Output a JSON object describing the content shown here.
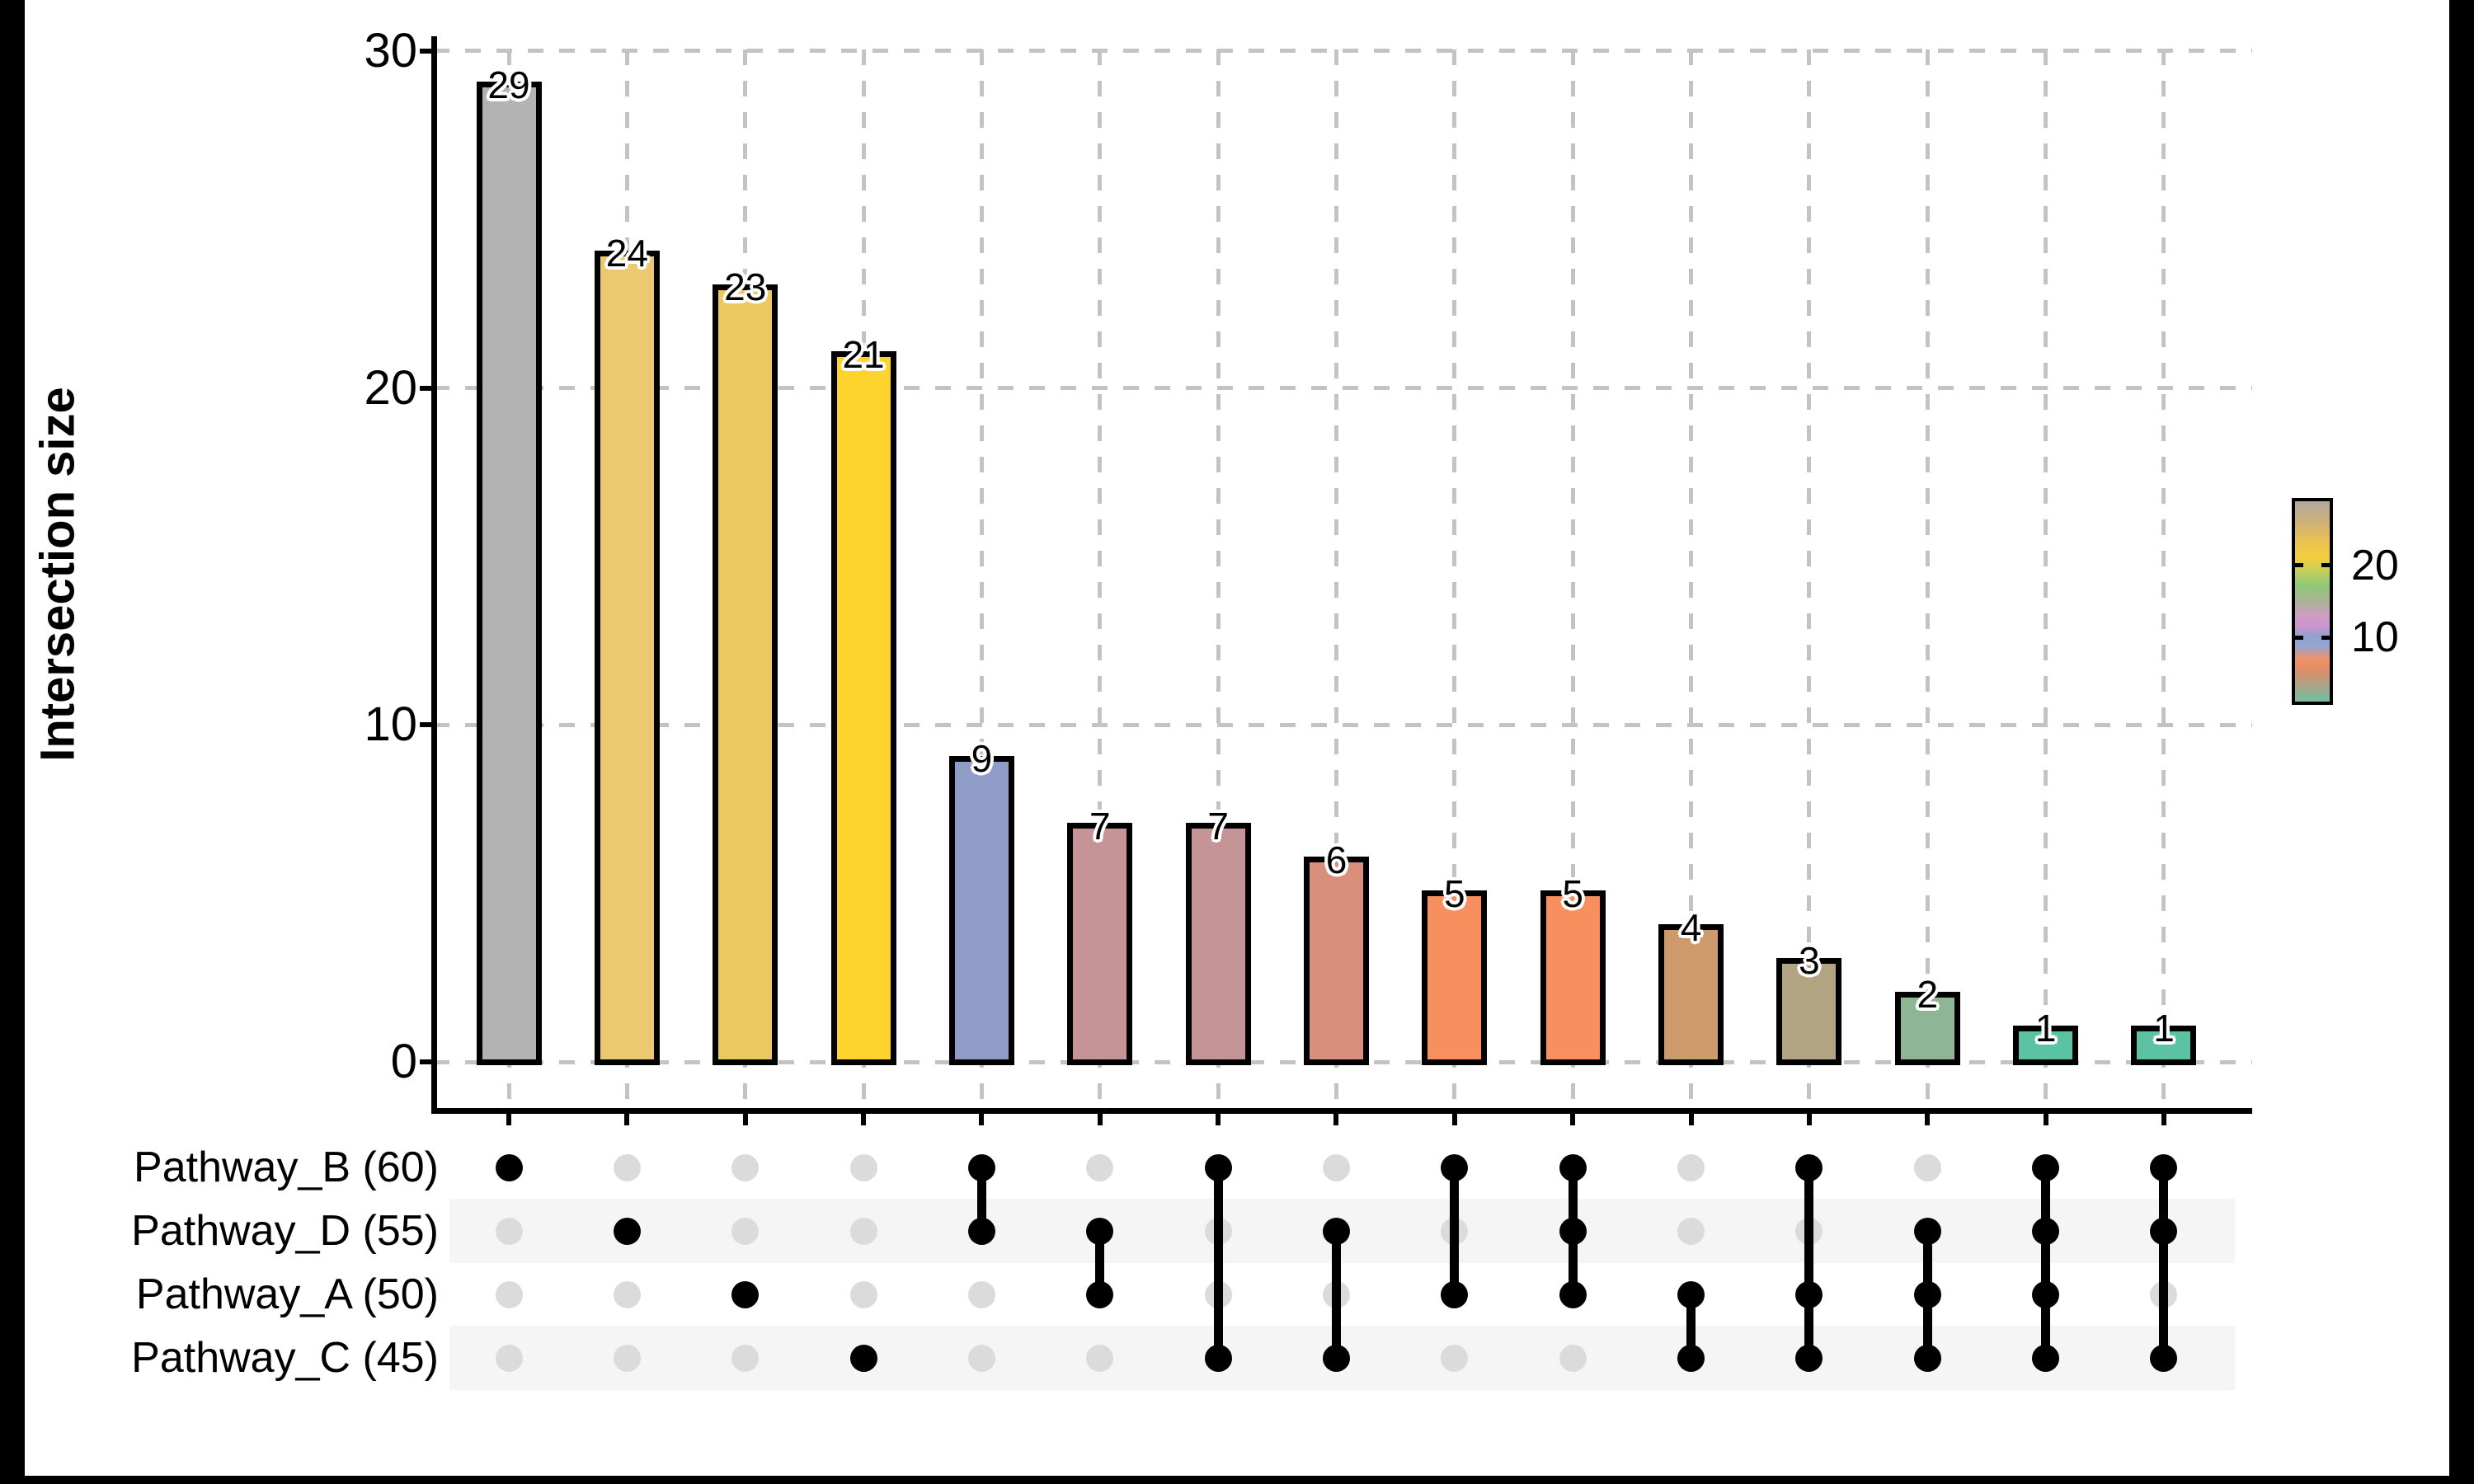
{
  "figure": {
    "background": "#ffffff",
    "border_strips_color": "#000000",
    "axis_color": "#000000",
    "gridline_color": "#c3c3c3",
    "inactive_dot_color": "#dbdbdb",
    "active_dot_color": "#000000",
    "stripe_color": "#f5f5f5"
  },
  "chart_data": {
    "type": "bar",
    "subtype": "upset-plot",
    "title": "",
    "ylabel": "Intersection size",
    "xlabel": "",
    "ylim": [
      0,
      30
    ],
    "y_ticks": [
      0,
      10,
      20,
      30
    ],
    "y_tick_labels": [
      "0",
      "10",
      "20",
      "30"
    ],
    "grid": "dashed",
    "sets": [
      {
        "name": "Pathway_B",
        "size": 60,
        "label": "Pathway_B (60)"
      },
      {
        "name": "Pathway_D",
        "size": 55,
        "label": "Pathway_D (55)"
      },
      {
        "name": "Pathway_A",
        "size": 50,
        "label": "Pathway_A (50)"
      },
      {
        "name": "Pathway_C",
        "size": 45,
        "label": "Pathway_C (45)"
      }
    ],
    "categories": [
      "B",
      "D",
      "A",
      "C",
      "B&D",
      "D&A",
      "B&C",
      "D&C",
      "B&A",
      "B&D&A",
      "A&C",
      "B&A&C",
      "D&A&C",
      "B&D&A&C",
      "B&D&C"
    ],
    "values": [
      29,
      24,
      23,
      21,
      9,
      7,
      7,
      6,
      5,
      5,
      4,
      3,
      2,
      1,
      1
    ],
    "intersections": [
      {
        "value": 29,
        "members": [
          "Pathway_B"
        ],
        "color": "#b3b3b3"
      },
      {
        "value": 24,
        "members": [
          "Pathway_D"
        ],
        "color": "#ecc871"
      },
      {
        "value": 23,
        "members": [
          "Pathway_A"
        ],
        "color": "#edc75f"
      },
      {
        "value": 21,
        "members": [
          "Pathway_C"
        ],
        "color": "#fdd32e"
      },
      {
        "value": 9,
        "members": [
          "Pathway_B",
          "Pathway_D"
        ],
        "color": "#8f9cc7"
      },
      {
        "value": 7,
        "members": [
          "Pathway_D",
          "Pathway_A"
        ],
        "color": "#c59497"
      },
      {
        "value": 7,
        "members": [
          "Pathway_B",
          "Pathway_C"
        ],
        "color": "#c59497"
      },
      {
        "value": 6,
        "members": [
          "Pathway_D",
          "Pathway_C"
        ],
        "color": "#d88f7c"
      },
      {
        "value": 5,
        "members": [
          "Pathway_B",
          "Pathway_A"
        ],
        "color": "#f78f5f"
      },
      {
        "value": 5,
        "members": [
          "Pathway_B",
          "Pathway_D",
          "Pathway_A"
        ],
        "color": "#f78f5f"
      },
      {
        "value": 4,
        "members": [
          "Pathway_A",
          "Pathway_C"
        ],
        "color": "#cf9a6b"
      },
      {
        "value": 3,
        "members": [
          "Pathway_B",
          "Pathway_A",
          "Pathway_C"
        ],
        "color": "#b0a482"
      },
      {
        "value": 2,
        "members": [
          "Pathway_D",
          "Pathway_A",
          "Pathway_C"
        ],
        "color": "#8fb694"
      },
      {
        "value": 1,
        "members": [
          "Pathway_B",
          "Pathway_D",
          "Pathway_A",
          "Pathway_C"
        ],
        "color": "#5cc2a4"
      },
      {
        "value": 1,
        "members": [
          "Pathway_B",
          "Pathway_D",
          "Pathway_C"
        ],
        "color": "#5cc2a4"
      }
    ],
    "colorbar": {
      "tick_labels": [
        "20",
        "10"
      ],
      "tick_values": [
        20,
        10
      ],
      "value_range": [
        0.6,
        29.4
      ],
      "gradient_top_to_bottom": [
        {
          "pos": 0.0,
          "color": "#b2a8a0"
        },
        {
          "pos": 0.1,
          "color": "#cdb07a"
        },
        {
          "pos": 0.2,
          "color": "#e9c253"
        },
        {
          "pos": 0.28,
          "color": "#f4cd3d"
        },
        {
          "pos": 0.34,
          "color": "#cbd055"
        },
        {
          "pos": 0.42,
          "color": "#8fc878"
        },
        {
          "pos": 0.5,
          "color": "#a8b295"
        },
        {
          "pos": 0.57,
          "color": "#d09cc4"
        },
        {
          "pos": 0.62,
          "color": "#cd95cf"
        },
        {
          "pos": 0.67,
          "color": "#97a0cb"
        },
        {
          "pos": 0.72,
          "color": "#92a6d4"
        },
        {
          "pos": 0.79,
          "color": "#f29167"
        },
        {
          "pos": 0.84,
          "color": "#e08f66"
        },
        {
          "pos": 0.89,
          "color": "#c09a7e"
        },
        {
          "pos": 1.0,
          "color": "#6fc0a2"
        }
      ]
    }
  }
}
